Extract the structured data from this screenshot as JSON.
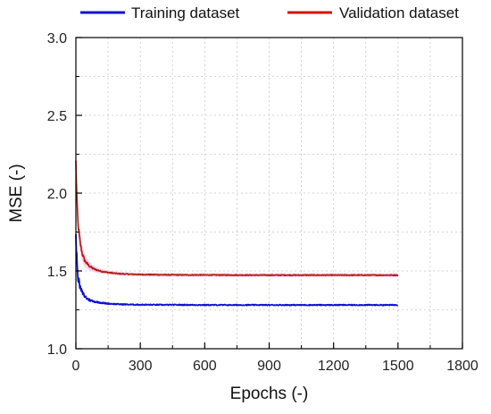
{
  "chart_data": {
    "type": "line",
    "title": "",
    "xlabel": "Epochs (-)",
    "ylabel": "MSE (-)",
    "xlim": [
      0,
      1800
    ],
    "ylim": [
      1.0,
      3.0
    ],
    "x_ticks": [
      0,
      300,
      600,
      900,
      1200,
      1500,
      1800
    ],
    "x_tick_labels": [
      "0",
      "300",
      "600",
      "900",
      "1200",
      "1500",
      "1800"
    ],
    "y_ticks": [
      1.0,
      1.5,
      2.0,
      2.5,
      3.0
    ],
    "y_tick_labels": [
      "1.0",
      "1.5",
      "2.0",
      "2.5",
      "3.0"
    ],
    "grid": true,
    "legend_position": "top",
    "series": [
      {
        "name": "Training dataset",
        "color": "#1010d0",
        "x": [
          0,
          5,
          10,
          20,
          30,
          40,
          50,
          60,
          80,
          100,
          120,
          150,
          200,
          250,
          300,
          400,
          500,
          600,
          800,
          1000,
          1200,
          1400,
          1500
        ],
        "y": [
          1.72,
          1.56,
          1.46,
          1.39,
          1.36,
          1.34,
          1.325,
          1.315,
          1.305,
          1.3,
          1.295,
          1.29,
          1.286,
          1.284,
          1.283,
          1.282,
          1.282,
          1.281,
          1.281,
          1.281,
          1.281,
          1.281,
          1.281
        ]
      },
      {
        "name": "Validation dataset",
        "color": "#d41010",
        "x": [
          0,
          5,
          10,
          20,
          30,
          40,
          50,
          60,
          80,
          100,
          120,
          150,
          200,
          250,
          300,
          400,
          500,
          600,
          800,
          1000,
          1200,
          1400,
          1500
        ],
        "y": [
          2.2,
          1.95,
          1.8,
          1.68,
          1.61,
          1.57,
          1.55,
          1.535,
          1.515,
          1.505,
          1.497,
          1.49,
          1.482,
          1.479,
          1.477,
          1.475,
          1.474,
          1.474,
          1.473,
          1.473,
          1.473,
          1.473,
          1.473
        ]
      }
    ]
  }
}
